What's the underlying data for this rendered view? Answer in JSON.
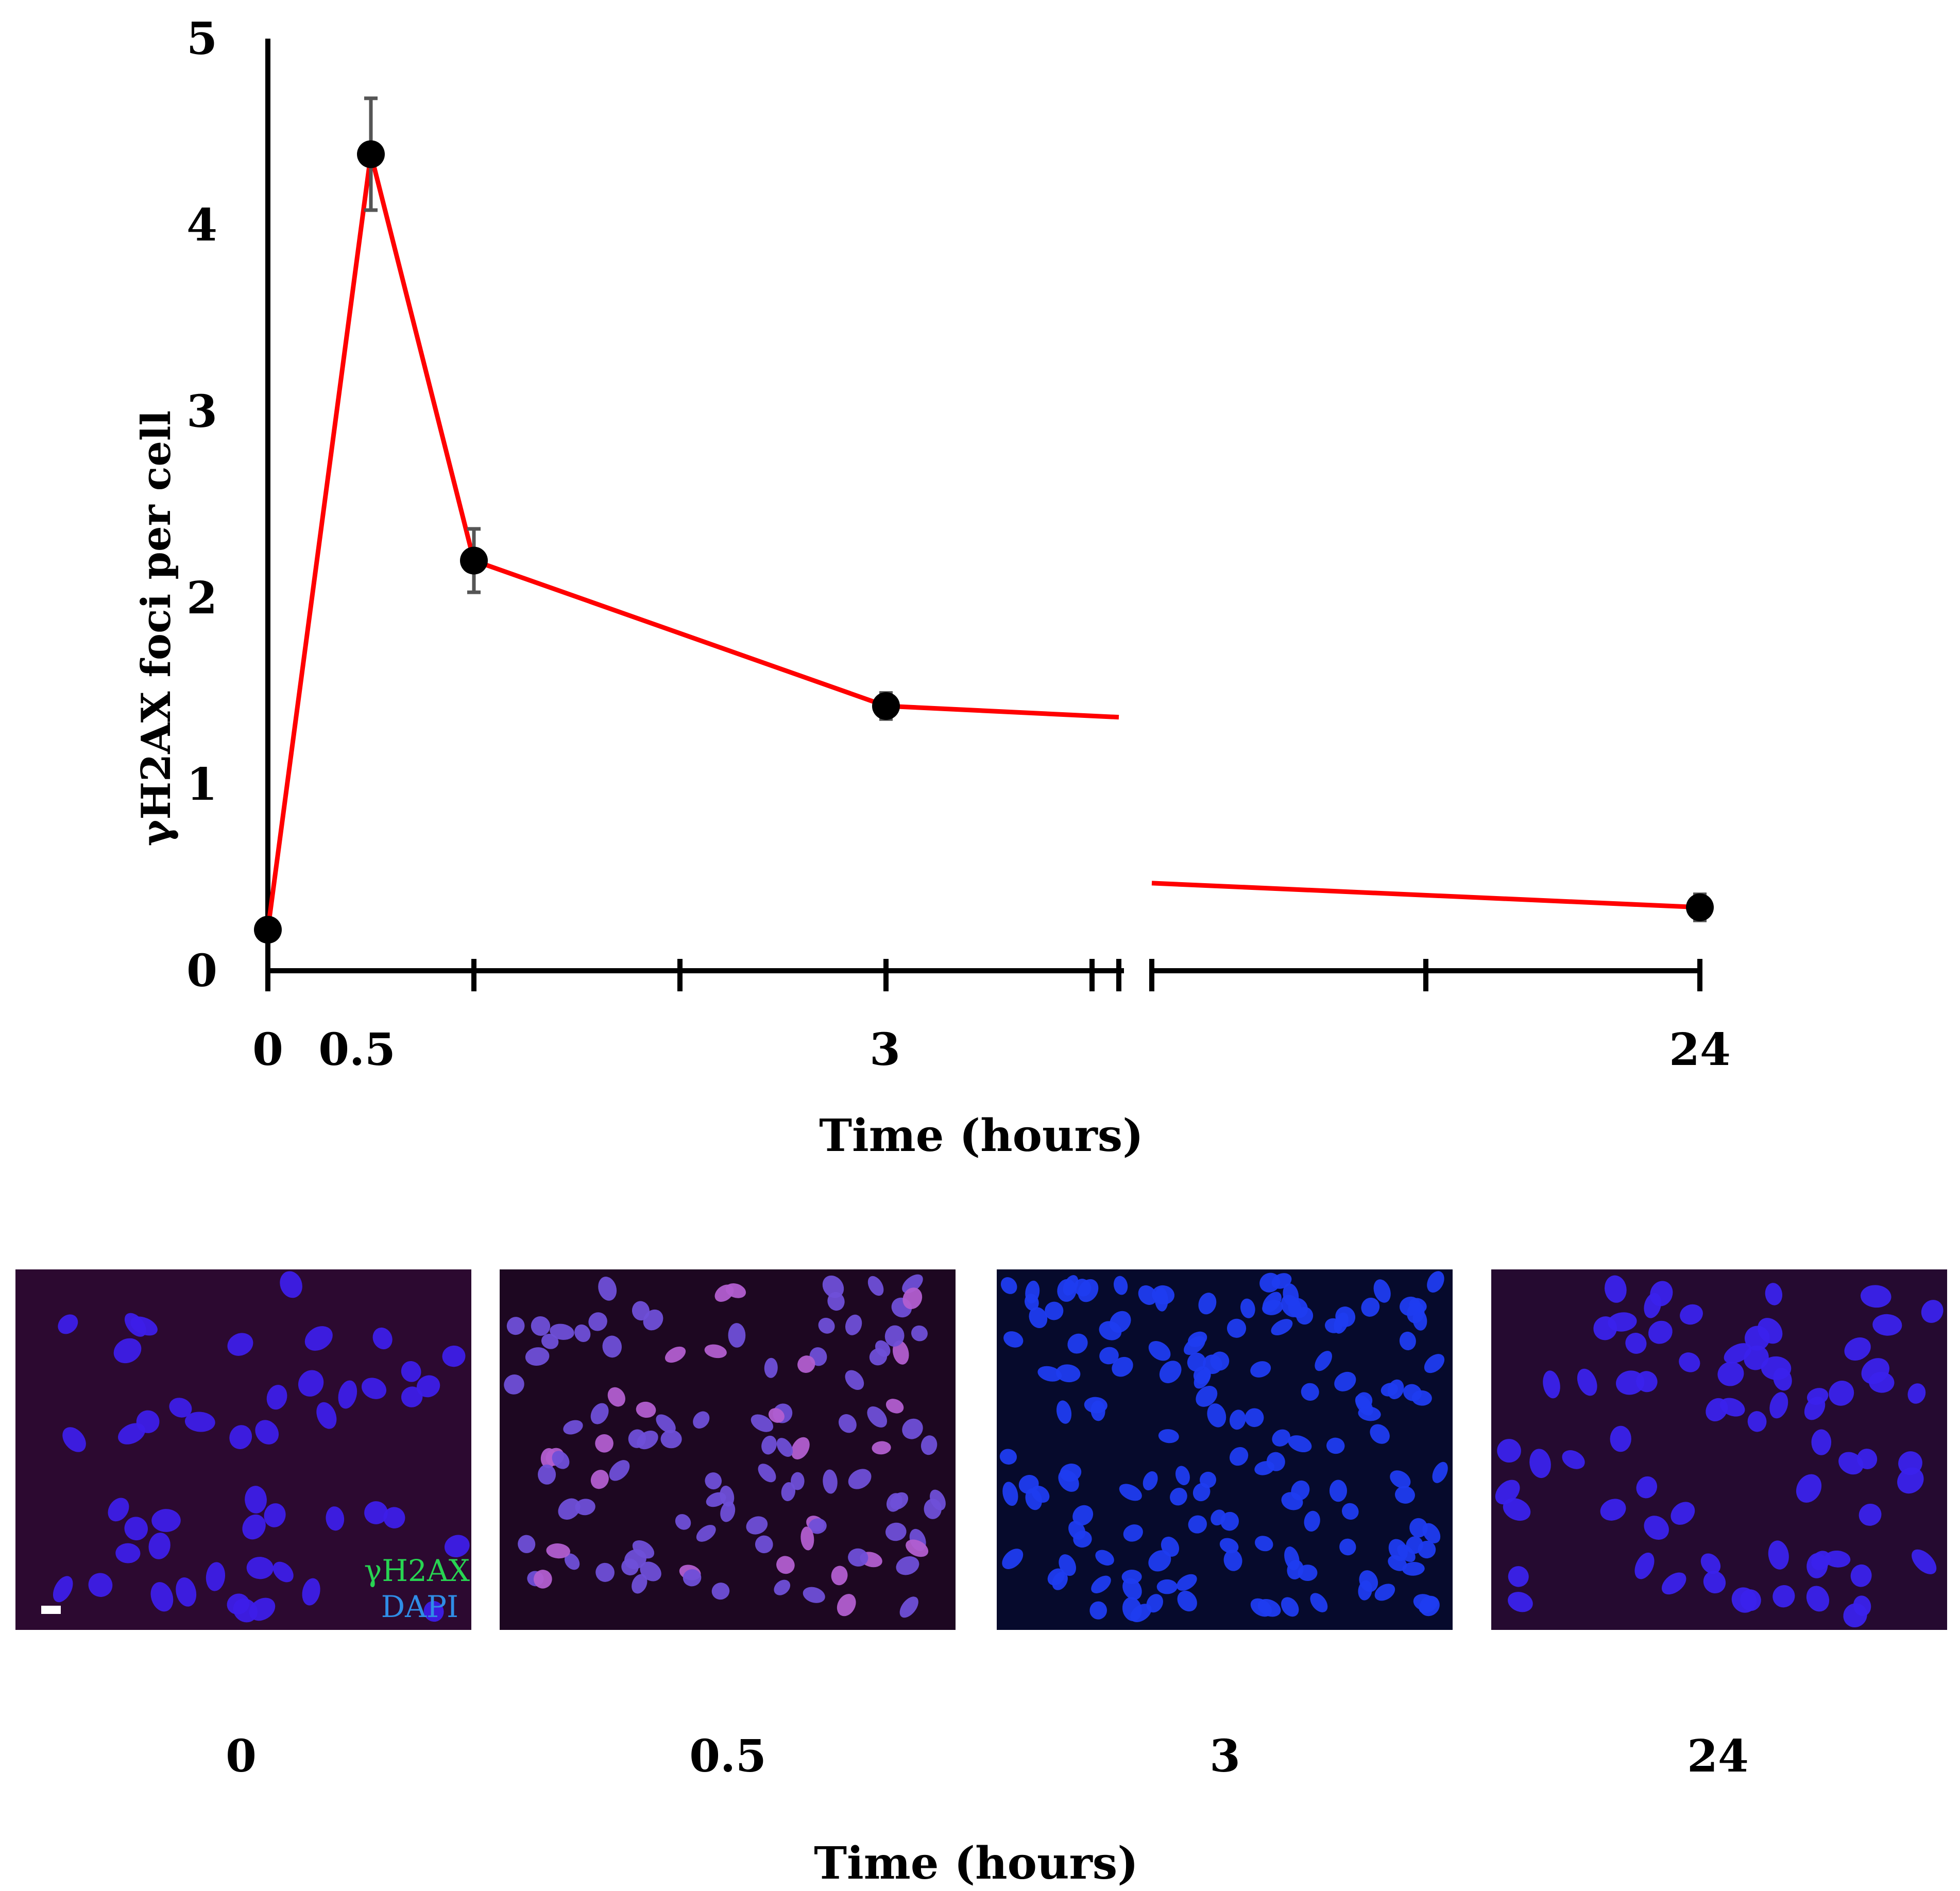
{
  "chart_data": {
    "type": "line",
    "title": "",
    "ylabel": "γH2AX foci per cell",
    "xlabel": "Time (hours)",
    "ylim": [
      0,
      5
    ],
    "yticks": [
      "0",
      "1",
      "2",
      "3",
      "4",
      "5"
    ],
    "x_tick_labels": [
      "0",
      "0.5",
      "3",
      "24"
    ],
    "axis_break": "between 4 and 20 hours",
    "series": [
      {
        "name": "γH2AX foci",
        "color": "#ff0000",
        "x": [
          0,
          0.5,
          1,
          3,
          24
        ],
        "y": [
          0.22,
          4.38,
          2.2,
          1.42,
          0.34
        ],
        "error": [
          0.02,
          0.3,
          0.17,
          0.07,
          0.07
        ]
      }
    ],
    "line_to_break_y": 1.36,
    "line_from_break_y": 0.47,
    "grid": false,
    "legend": "none"
  },
  "panels": [
    {
      "label": "0",
      "background": "#2c0930",
      "nucleus_color": "#3d1ee8"
    },
    {
      "label": "0.5",
      "background": "#1d0721",
      "nucleus_color": "#6f4fd8"
    },
    {
      "label": "3",
      "background": "#060a2c",
      "nucleus_color": "#1f3cf0"
    },
    {
      "label": "24",
      "background": "#250a30",
      "nucleus_color": "#3a22ec"
    }
  ],
  "legend": {
    "gh2ax": "γH2AX",
    "dapi": "DAPI",
    "gh2ax_color": "#28d452",
    "dapi_color": "#2f8de6"
  },
  "panel_xlabel": "Time (hours)"
}
